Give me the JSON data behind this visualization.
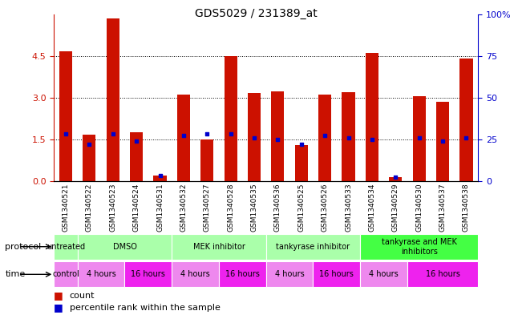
{
  "title": "GDS5029 / 231389_at",
  "samples": [
    "GSM1340521",
    "GSM1340522",
    "GSM1340523",
    "GSM1340524",
    "GSM1340531",
    "GSM1340532",
    "GSM1340527",
    "GSM1340528",
    "GSM1340535",
    "GSM1340536",
    "GSM1340525",
    "GSM1340526",
    "GSM1340533",
    "GSM1340534",
    "GSM1340529",
    "GSM1340530",
    "GSM1340537",
    "GSM1340538"
  ],
  "counts": [
    4.65,
    1.65,
    5.85,
    1.75,
    0.2,
    3.1,
    1.5,
    4.5,
    3.15,
    3.22,
    1.3,
    3.1,
    3.2,
    4.6,
    0.12,
    3.05,
    2.85,
    4.4
  ],
  "percentile_ranks": [
    28,
    22,
    28,
    24,
    3,
    27,
    28,
    28,
    26,
    25,
    22,
    27,
    26,
    25,
    2,
    26,
    24,
    26
  ],
  "bar_color": "#cc1100",
  "dot_color": "#0000cc",
  "ylim_left": [
    0,
    6
  ],
  "ylim_right": [
    0,
    100
  ],
  "yticks_left": [
    0,
    1.5,
    3,
    4.5
  ],
  "yticks_right": [
    0,
    25,
    50,
    75,
    100
  ],
  "ylabel_left_color": "#cc1100",
  "ylabel_right_color": "#0000cc",
  "grid_color": "black",
  "bg_color": "#ffffff",
  "sample_area_color": "#cccccc",
  "protocol_groups": [
    {
      "label": "untreated",
      "start": 0,
      "end": 1,
      "color": "#aaffaa"
    },
    {
      "label": "DMSO",
      "start": 1,
      "end": 5,
      "color": "#aaffaa"
    },
    {
      "label": "MEK inhibitor",
      "start": 5,
      "end": 9,
      "color": "#aaffaa"
    },
    {
      "label": "tankyrase inhibitor",
      "start": 9,
      "end": 13,
      "color": "#aaffaa"
    },
    {
      "label": "tankyrase and MEK\ninhibitors",
      "start": 13,
      "end": 18,
      "color": "#44ff44"
    }
  ],
  "time_groups": [
    {
      "label": "control",
      "start": 0,
      "end": 1,
      "color": "#ee88ee"
    },
    {
      "label": "4 hours",
      "start": 1,
      "end": 3,
      "color": "#ee88ee"
    },
    {
      "label": "16 hours",
      "start": 3,
      "end": 5,
      "color": "#ee22ee"
    },
    {
      "label": "4 hours",
      "start": 5,
      "end": 7,
      "color": "#ee88ee"
    },
    {
      "label": "16 hours",
      "start": 7,
      "end": 9,
      "color": "#ee22ee"
    },
    {
      "label": "4 hours",
      "start": 9,
      "end": 11,
      "color": "#ee88ee"
    },
    {
      "label": "16 hours",
      "start": 11,
      "end": 13,
      "color": "#ee22ee"
    },
    {
      "label": "4 hours",
      "start": 13,
      "end": 15,
      "color": "#ee88ee"
    },
    {
      "label": "16 hours",
      "start": 15,
      "end": 18,
      "color": "#ee22ee"
    }
  ],
  "protocol_row_label": "protocol",
  "time_row_label": "time",
  "legend_count_label": "count",
  "legend_pct_label": "percentile rank within the sample",
  "bar_width": 0.55
}
